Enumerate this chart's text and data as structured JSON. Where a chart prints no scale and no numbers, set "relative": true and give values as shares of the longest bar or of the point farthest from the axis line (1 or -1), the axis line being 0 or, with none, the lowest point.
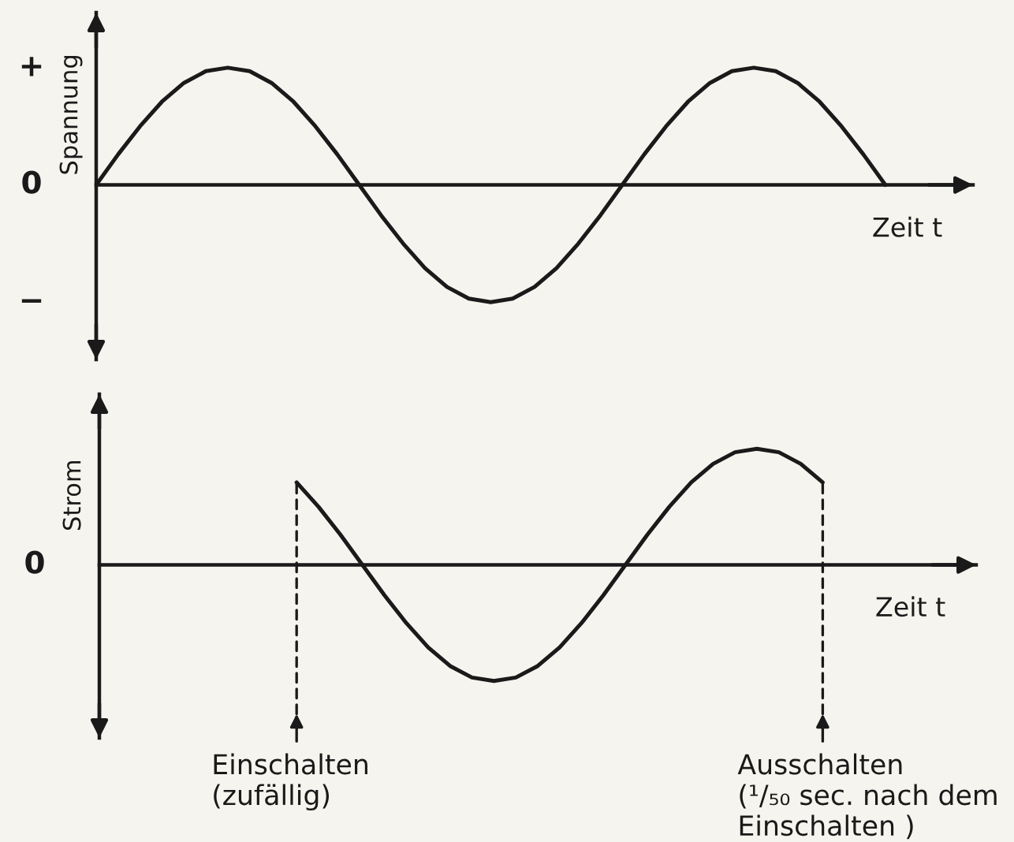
{
  "chart_data": [
    {
      "type": "line",
      "relative": true,
      "ylabel": "Spannung",
      "xlabel": "Zeit t",
      "categories": [
        null,
        null,
        null,
        null,
        null,
        null,
        null,
        null,
        null,
        null,
        null,
        null,
        null,
        null,
        null,
        null,
        null,
        null,
        null,
        null,
        null,
        null,
        null,
        null,
        null,
        null,
        null,
        null,
        null,
        null,
        null,
        null,
        null,
        null,
        null,
        null,
        null,
        null,
        null,
        null,
        null
      ],
      "series": [
        {
          "color": "#1a1a1a",
          "values": [
            0,
            0.26,
            0.5,
            0.71,
            0.87,
            0.97,
            1,
            0.97,
            0.87,
            0.71,
            0.5,
            0.26,
            0,
            -0.26,
            -0.5,
            -0.71,
            -0.87,
            -0.97,
            -1,
            -0.97,
            -0.87,
            -0.71,
            -0.5,
            -0.26,
            0,
            0.26,
            0.5,
            0.71,
            0.87,
            0.97,
            1,
            0.97,
            0.87,
            0.71,
            0.5,
            0.26,
            0,
            null,
            null,
            null,
            null
          ]
        }
      ],
      "annotations": [
        "+",
        "0",
        "−"
      ]
    },
    {
      "type": "line",
      "relative": true,
      "ylabel": "Strom",
      "xlabel": "Zeit t",
      "categories": [
        null,
        null,
        null,
        null,
        null,
        null,
        null,
        null,
        null,
        null,
        null,
        null,
        null,
        null,
        null,
        null,
        null,
        null,
        null,
        null,
        null,
        null,
        null,
        null,
        null,
        null,
        null,
        null,
        null,
        null,
        null,
        null,
        null,
        null,
        null,
        null,
        null,
        null,
        null,
        null,
        null
      ],
      "series": [
        {
          "color": "#1a1a1a",
          "values": [
            null,
            null,
            null,
            null,
            null,
            null,
            null,
            null,
            null,
            0.71,
            0.5,
            0.26,
            0,
            -0.26,
            -0.5,
            -0.71,
            -0.87,
            -0.97,
            -1,
            -0.97,
            -0.87,
            -0.71,
            -0.5,
            -0.26,
            0,
            0.26,
            0.5,
            0.71,
            0.87,
            0.97,
            1,
            0.97,
            0.87,
            0.71,
            null,
            null,
            null,
            null,
            null,
            null,
            null
          ]
        }
      ],
      "annotations": [
        "0",
        "Einschalten\n(zufällig)",
        "Ausschalten\n(¹/₅₀ sec. nach dem\nEinschalten )"
      ]
    }
  ]
}
